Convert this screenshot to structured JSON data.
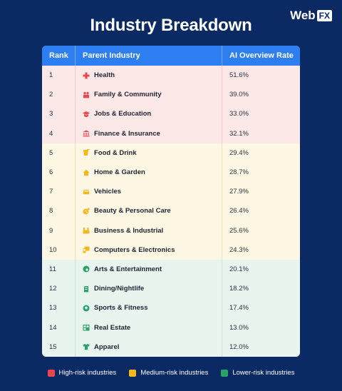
{
  "brand": {
    "name": "Web",
    "suffix": "FX"
  },
  "title": "Industry Breakdown",
  "colors": {
    "background": "#0b2a63",
    "header": "#2d7ff1",
    "high": "#e8474f",
    "medium": "#f2b81c",
    "low": "#2aa36b"
  },
  "chart_data": {
    "type": "table",
    "title": "Industry Breakdown",
    "columns": [
      "Rank",
      "Parent Industry",
      "AI Overview Rate"
    ],
    "rows": [
      {
        "rank": "1",
        "industry": "Health",
        "rate": "51.6%",
        "risk": "high",
        "icon": "medical-cross-icon"
      },
      {
        "rank": "2",
        "industry": "Family & Community",
        "rate": "39.0%",
        "risk": "high",
        "icon": "people-icon"
      },
      {
        "rank": "3",
        "industry": "Jobs & Education",
        "rate": "33.0%",
        "risk": "high",
        "icon": "graduation-cap-icon"
      },
      {
        "rank": "4",
        "industry": "Finance & Insurance",
        "rate": "32.1%",
        "risk": "high",
        "icon": "bank-icon"
      },
      {
        "rank": "5",
        "industry": "Food & Drink",
        "rate": "29.4%",
        "risk": "medium",
        "icon": "food-icon"
      },
      {
        "rank": "6",
        "industry": "Home & Garden",
        "rate": "28.7%",
        "risk": "medium",
        "icon": "home-icon"
      },
      {
        "rank": "7",
        "industry": "Vehicles",
        "rate": "27.9%",
        "risk": "medium",
        "icon": "car-icon"
      },
      {
        "rank": "8",
        "industry": "Beauty & Personal Care",
        "rate": "26.4%",
        "risk": "medium",
        "icon": "beauty-icon"
      },
      {
        "rank": "9",
        "industry": "Business & Industrial",
        "rate": "25.6%",
        "risk": "medium",
        "icon": "factory-icon"
      },
      {
        "rank": "10",
        "industry": "Computers & Electronics",
        "rate": "24.3%",
        "risk": "medium",
        "icon": "computer-icon"
      },
      {
        "rank": "11",
        "industry": "Arts & Entertainment",
        "rate": "20.1%",
        "risk": "low",
        "icon": "palette-icon"
      },
      {
        "rank": "12",
        "industry": "Dining/Nightlife",
        "rate": "18.2%",
        "risk": "low",
        "icon": "drink-icon"
      },
      {
        "rank": "13",
        "industry": "Sports & Fitness",
        "rate": "17.4%",
        "risk": "low",
        "icon": "ball-icon"
      },
      {
        "rank": "14",
        "industry": "Real Estate",
        "rate": "13.0%",
        "risk": "low",
        "icon": "building-icon"
      },
      {
        "rank": "15",
        "industry": "Apparel",
        "rate": "12.0%",
        "risk": "low",
        "icon": "shirt-icon"
      }
    ]
  },
  "legend": [
    {
      "label": "High-risk industries",
      "risk": "high"
    },
    {
      "label": "Medium-risk industries",
      "risk": "medium"
    },
    {
      "label": "Lower-risk industries",
      "risk": "low"
    }
  ]
}
